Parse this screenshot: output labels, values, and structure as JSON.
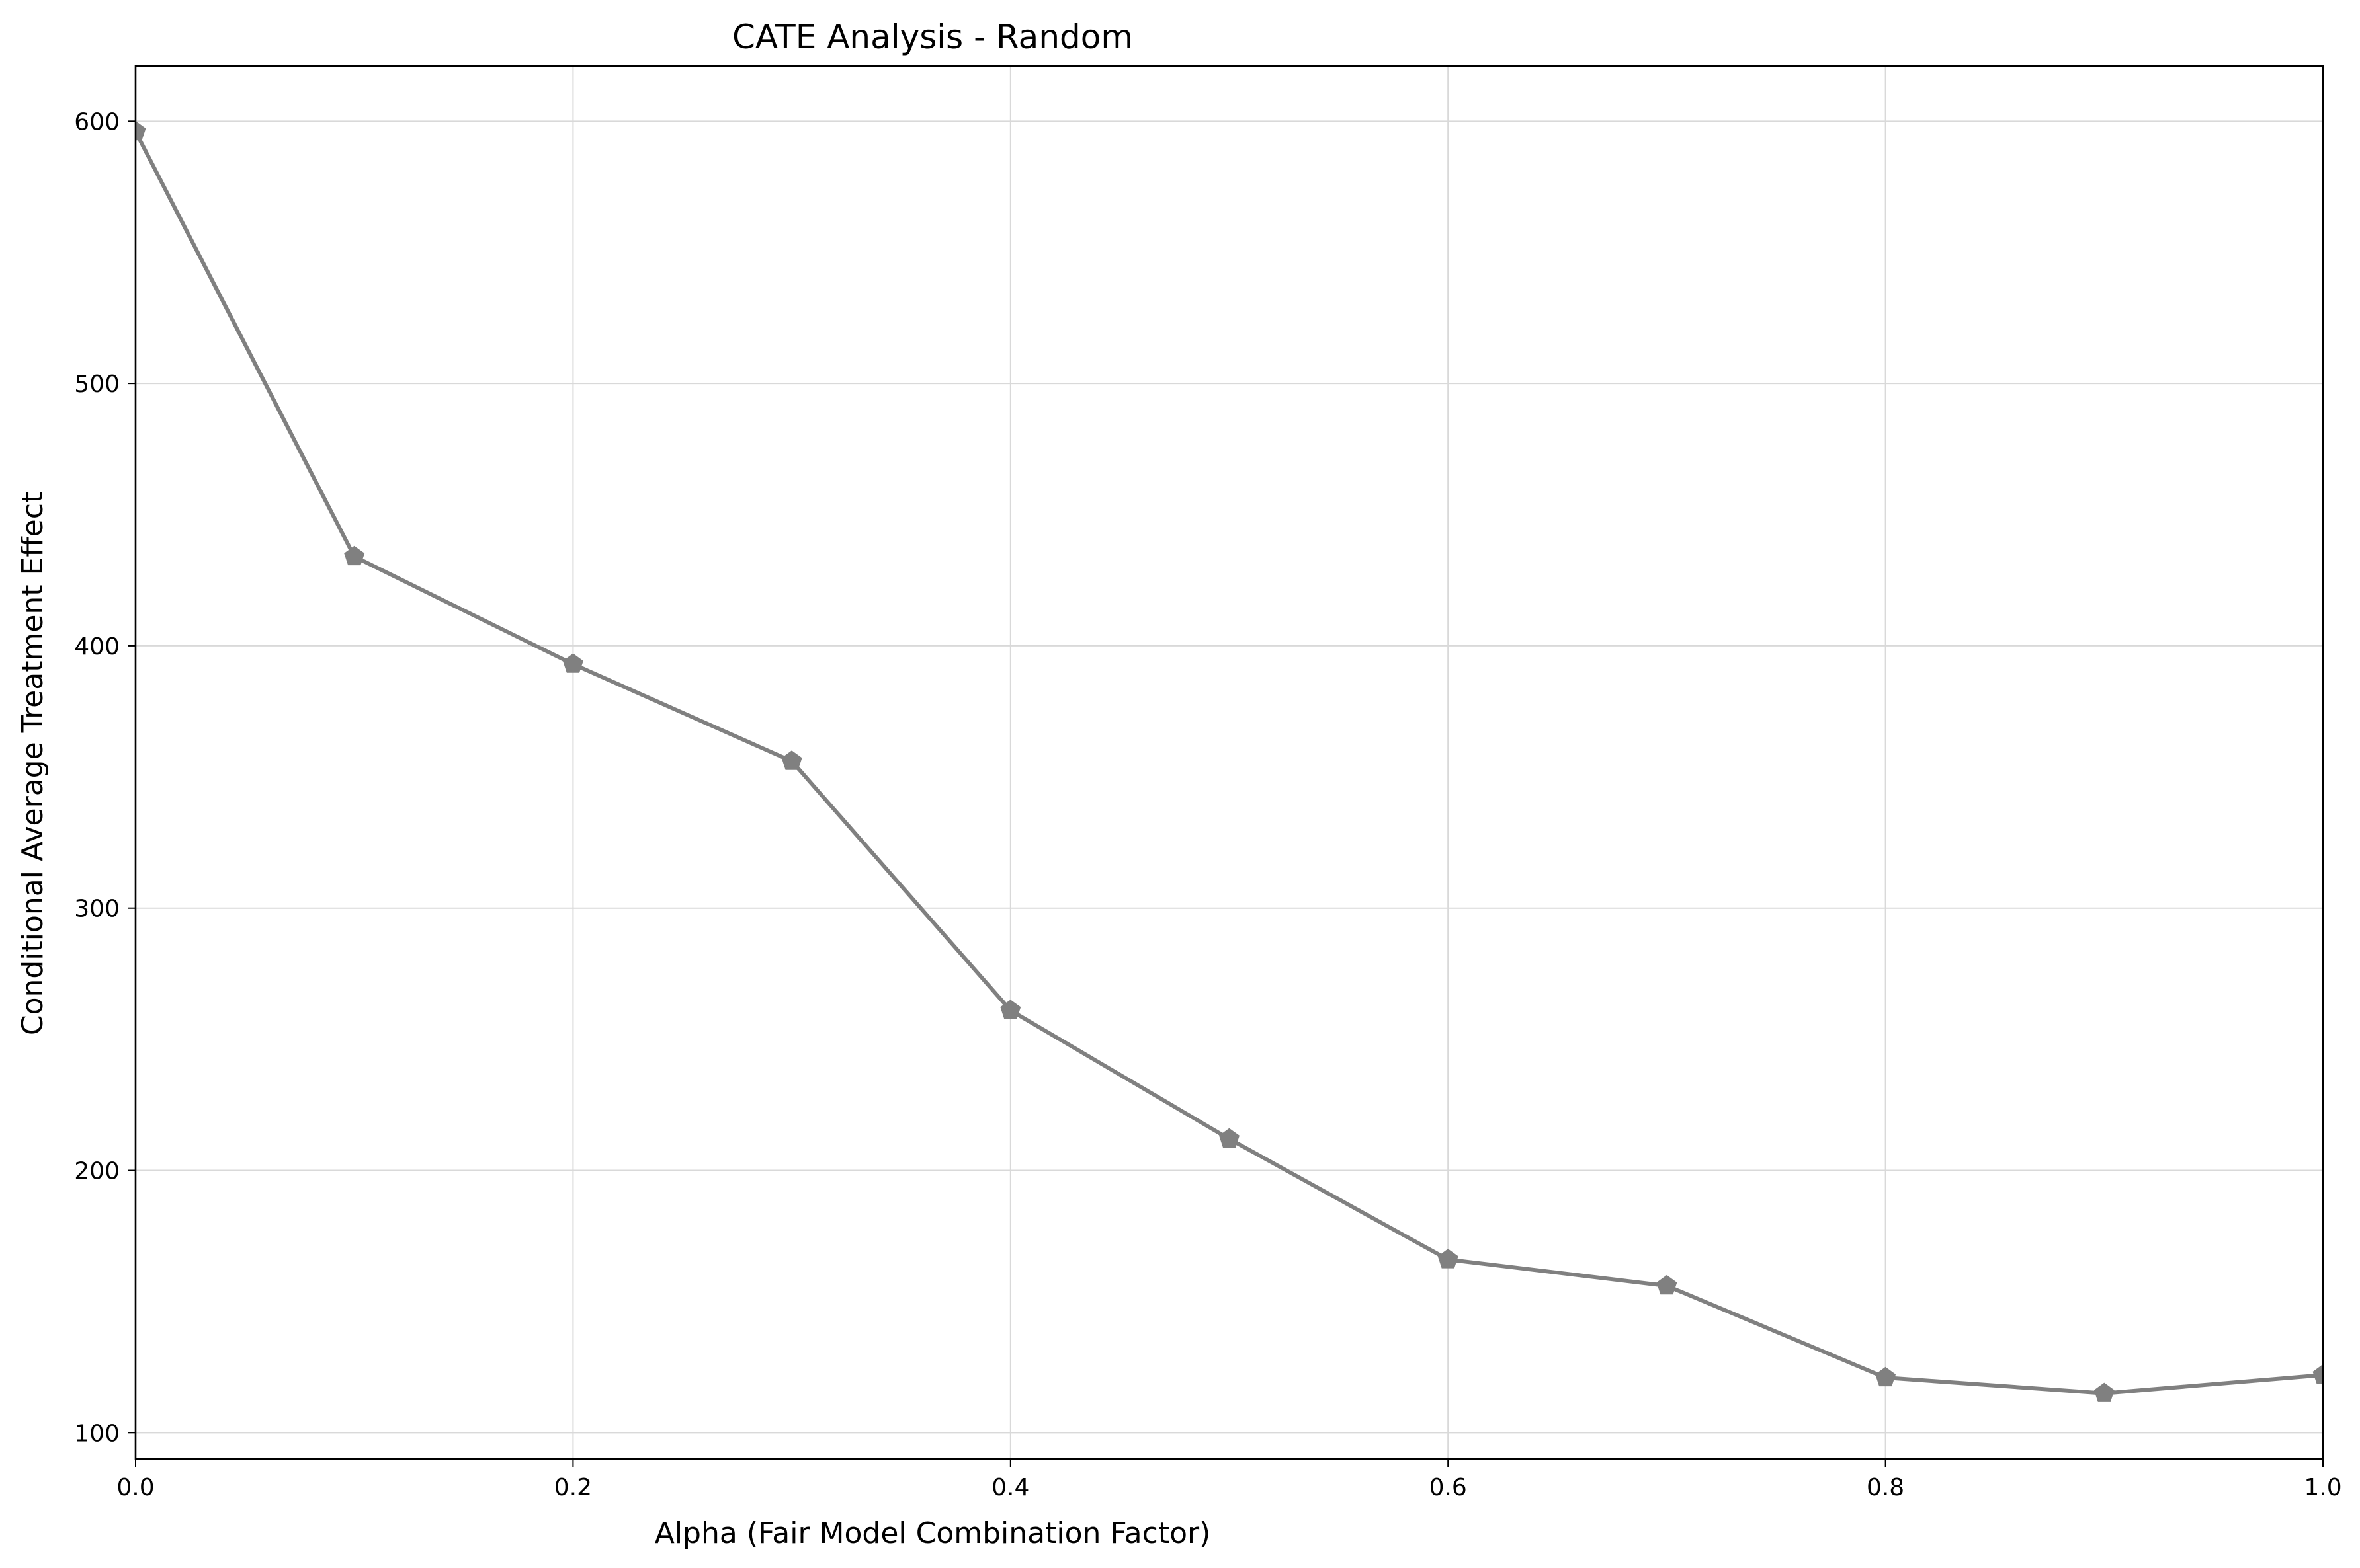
{
  "chart_data": {
    "type": "line",
    "title": "CATE Analysis - Random",
    "xlabel": "Alpha (Fair Model Combination Factor)",
    "ylabel": "Conditional Average Treatment Effect",
    "xlim": [
      0.0,
      1.0
    ],
    "ylim": [
      90,
      621
    ],
    "xticks": [
      0.0,
      0.2,
      0.4,
      0.6,
      0.8,
      1.0
    ],
    "xtick_labels": [
      "0.0",
      "0.2",
      "0.4",
      "0.6",
      "0.8",
      "1.0"
    ],
    "yticks": [
      100,
      200,
      300,
      400,
      500,
      600
    ],
    "ytick_labels": [
      "100",
      "200",
      "300",
      "400",
      "500",
      "600"
    ],
    "grid": true,
    "marker": "pentagon",
    "series": [
      {
        "name": "Random",
        "color": "#808080",
        "x": [
          0.0,
          0.1,
          0.2,
          0.3,
          0.4,
          0.5,
          0.6,
          0.7,
          0.8,
          0.9,
          1.0
        ],
        "values": [
          596,
          434,
          393,
          356,
          261,
          212,
          166,
          156,
          121,
          115,
          122
        ]
      }
    ]
  }
}
